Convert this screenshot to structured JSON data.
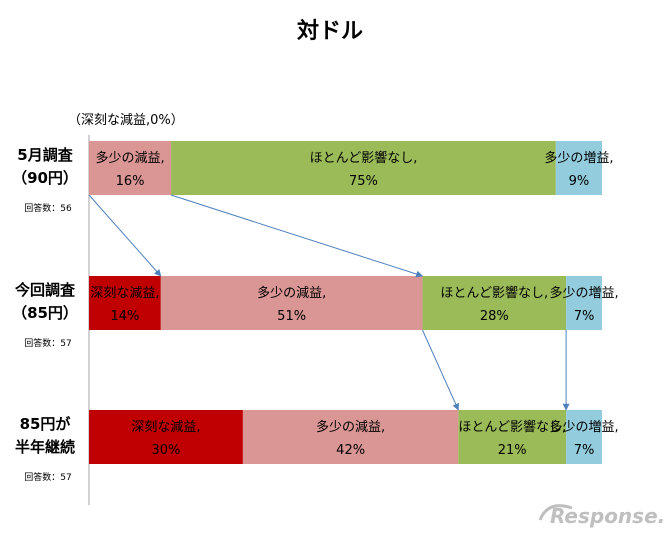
{
  "chart_data": {
    "type": "bar",
    "orientation": "horizontal",
    "stacked": "percent",
    "title": "対ドル",
    "categories": [
      {
        "name": "5月調査",
        "sub": "（90円）",
        "respondents": "回答数：56"
      },
      {
        "name": "今回調査",
        "sub": "（85円）",
        "respondents": "回答数：57"
      },
      {
        "name": "85円が",
        "sub": "半年継続",
        "respondents": "回答数：57"
      }
    ],
    "series": [
      {
        "name": "深刻な減益",
        "color": "#c00000",
        "values": [
          0,
          14,
          30
        ]
      },
      {
        "name": "多少の減益",
        "color": "#d99694",
        "values": [
          16,
          51,
          42
        ]
      },
      {
        "name": "ほとんど影響なし",
        "color": "#9bbb59",
        "values": [
          75,
          28,
          21
        ]
      },
      {
        "name": "多少の増益",
        "color": "#93cddd",
        "values": [
          9,
          7,
          7
        ]
      }
    ],
    "segment_labels": [
      [
        null,
        "多少の減益,|16%",
        "ほとんど影響なし,|75%",
        "多少の増益,|9%"
      ],
      [
        "深刻な減益,|14%",
        "多少の減益,|51%",
        "ほとんど影響なし,|28%",
        "多少の増益,|7%"
      ],
      [
        "深刻な減益,|30%",
        "多少の減益,|42%",
        "ほとんど影響なし,|21%",
        "多少の増益,|7%"
      ]
    ],
    "annotation": "（深刻な減益,0%）",
    "arrows": [
      {
        "from_bar": 0,
        "to_bar": 1,
        "boundary": 0
      },
      {
        "from_bar": 0,
        "to_bar": 1,
        "boundary": 1
      },
      {
        "from_bar": 1,
        "to_bar": 2,
        "boundary": 1
      },
      {
        "from_bar": 1,
        "to_bar": 2,
        "boundary": 2
      }
    ],
    "xlim": [
      0,
      100
    ],
    "grid": false,
    "legend": "none"
  },
  "branding": {
    "logo_text": "Response."
  },
  "colors": {
    "axis": "#a6a6a6",
    "arrow": "#4f81bd"
  }
}
